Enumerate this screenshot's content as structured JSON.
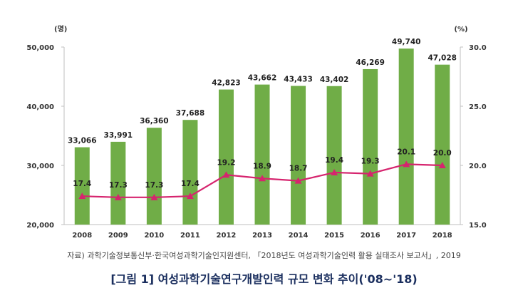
{
  "chart_data": {
    "type": "bar",
    "categories": [
      "2008",
      "2009",
      "2010",
      "2011",
      "2012",
      "2013",
      "2014",
      "2015",
      "2016",
      "2017",
      "2018"
    ],
    "series": [
      {
        "kind": "bar",
        "axis": "left",
        "color": "#70ad47",
        "values": [
          33066,
          33991,
          36360,
          37688,
          42823,
          43662,
          43433,
          43402,
          46269,
          49740,
          47028
        ],
        "data_labels": [
          "33,066",
          "33,991",
          "36,360",
          "37,688",
          "42,823",
          "43,662",
          "43,433",
          "43,402",
          "46,269",
          "49,740",
          "47,028"
        ]
      },
      {
        "kind": "line",
        "axis": "right",
        "color": "#d6246e",
        "marker": "triangle",
        "values": [
          17.4,
          17.3,
          17.3,
          17.4,
          19.2,
          18.9,
          18.7,
          19.4,
          19.3,
          20.1,
          20.0
        ],
        "data_labels": [
          "17.4",
          "17.3",
          "17.3",
          "17.4",
          "19.2",
          "18.9",
          "18.7",
          "19.4",
          "19.3",
          "20.1",
          "20.0"
        ]
      }
    ],
    "ylim": [
      20000,
      50000
    ],
    "y_ticks": [
      "20,000",
      "30,000",
      "40,000",
      "50,000"
    ],
    "y_tick_values": [
      20000,
      30000,
      40000,
      50000
    ],
    "ylabel": "(명)",
    "y2lim": [
      15.0,
      30.0
    ],
    "y2_ticks": [
      "15.0",
      "20.0",
      "25.0",
      "30.0"
    ],
    "y2_tick_values": [
      15,
      20,
      25,
      30
    ],
    "y2label": "(%)",
    "grid": false,
    "legend": "none"
  },
  "source_note": "자료) 과학기술정보통신부·한국여성과학기술인지원센터, 「2018년도 여성과학기술인력 활용 실태조사 보고서」, 2019",
  "caption": "[그림 1] 여성과학기술연구개발인력 규모 변화 추이('08~'18)"
}
